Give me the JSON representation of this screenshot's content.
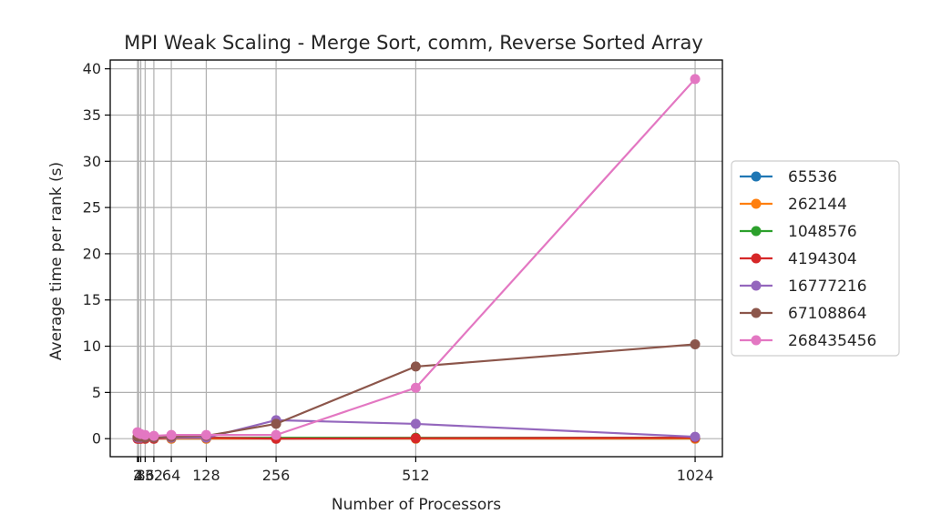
{
  "chart_data": {
    "type": "line",
    "title": "MPI Weak Scaling - Merge Sort, comm, Reverse Sorted Array",
    "xlabel": "Number of Processors",
    "ylabel": "Average time per rank (s)",
    "x": [
      2,
      4,
      8,
      16,
      32,
      64,
      128,
      256,
      512,
      1024
    ],
    "x_tick_labels": [
      "2",
      "4",
      "8",
      "16",
      "32",
      "64",
      "128",
      "256",
      "512",
      "1024"
    ],
    "y_ticks": [
      0,
      5,
      10,
      15,
      20,
      25,
      30,
      35,
      40
    ],
    "xlim": [
      -48,
      1074
    ],
    "ylim": [
      -1.95,
      40.95
    ],
    "grid": true,
    "legend_position": "outside-right",
    "series": [
      {
        "name": "65536",
        "color": "#1f77b4",
        "values": [
          0.0,
          0.0,
          0.0,
          0.0,
          0.0,
          0.0,
          0.0,
          0.0,
          0.0,
          0.0
        ]
      },
      {
        "name": "262144",
        "color": "#ff7f0e",
        "values": [
          0.0,
          0.0,
          0.0,
          0.0,
          0.0,
          0.0,
          0.0,
          0.0,
          0.0,
          0.0
        ]
      },
      {
        "name": "1048576",
        "color": "#2ca02c",
        "values": [
          0.1,
          0.1,
          0.1,
          0.1,
          0.1,
          0.1,
          0.1,
          0.1,
          0.1,
          0.1
        ]
      },
      {
        "name": "4194304",
        "color": "#d62728",
        "values": [
          0.0,
          0.0,
          0.0,
          0.0,
          0.0,
          0.1,
          0.1,
          0.0,
          0.05,
          0.1
        ]
      },
      {
        "name": "16777216",
        "color": "#9467bd",
        "values": [
          0.1,
          0.1,
          0.1,
          0.1,
          0.1,
          0.1,
          0.1,
          2.0,
          1.6,
          0.2
        ]
      },
      {
        "name": "67108864",
        "color": "#8c564b",
        "values": [
          0.2,
          0.2,
          0.2,
          0.1,
          0.1,
          0.2,
          0.3,
          1.6,
          7.8,
          10.2
        ]
      },
      {
        "name": "268435456",
        "color": "#e377c2",
        "values": [
          0.7,
          0.6,
          0.5,
          0.4,
          0.3,
          0.4,
          0.4,
          0.4,
          5.5,
          38.9
        ]
      }
    ]
  }
}
